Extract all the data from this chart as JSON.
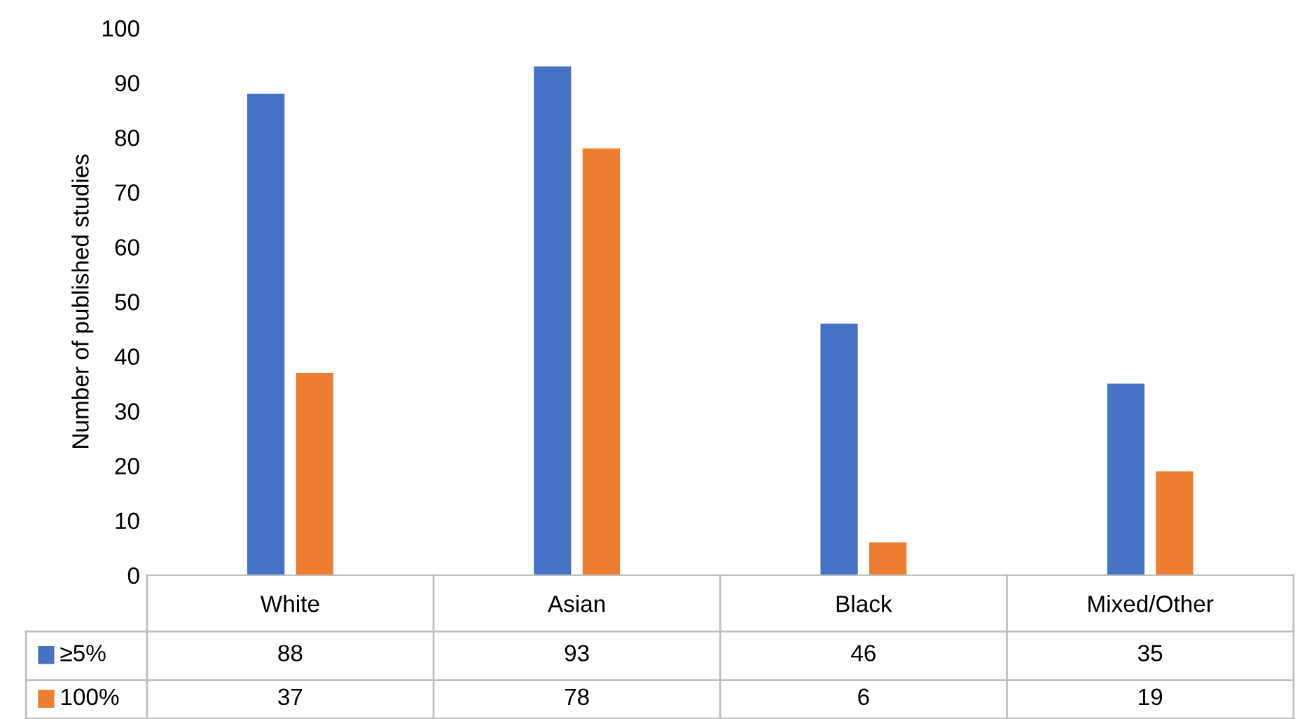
{
  "chart_data": {
    "type": "bar",
    "ylabel": "Number of published studies",
    "categories": [
      "White",
      "Asian",
      "Black",
      "Mixed/Other"
    ],
    "series": [
      {
        "name": "≥5%",
        "color": "#4472c4",
        "values": [
          88,
          93,
          46,
          35
        ]
      },
      {
        "name": "100%",
        "color": "#ed7d31",
        "values": [
          37,
          78,
          6,
          19
        ]
      }
    ],
    "ylim": [
      0,
      100
    ],
    "yticks": [
      0,
      10,
      20,
      30,
      40,
      50,
      60,
      70,
      80,
      90,
      100
    ],
    "grid": false,
    "legend": "bottom",
    "data_labels": true
  }
}
